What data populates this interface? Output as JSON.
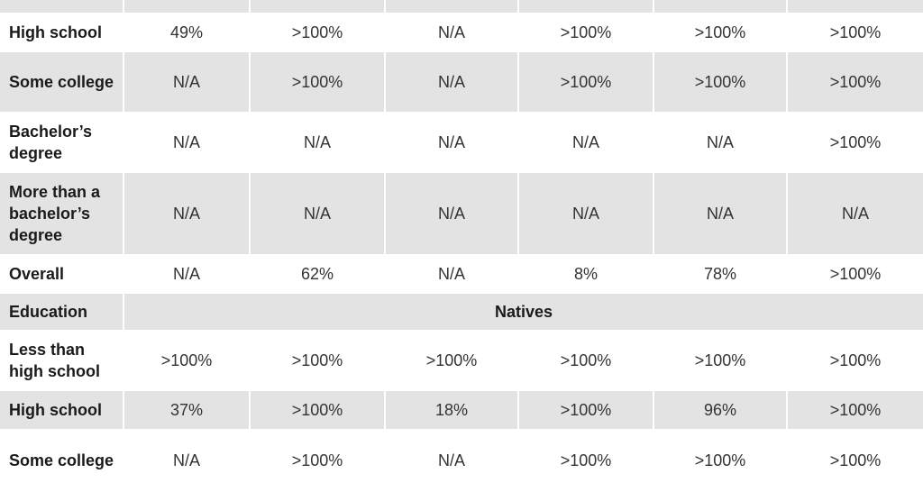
{
  "rows": [
    {
      "label": "",
      "values": [
        "",
        "",
        "",
        "",
        "",
        ""
      ],
      "shaded": true
    },
    {
      "label": "High school",
      "values": [
        "49%",
        ">100%",
        "N/A",
        ">100%",
        ">100%",
        ">100%"
      ],
      "shaded": false
    },
    {
      "label": "Some college",
      "values": [
        "N/A",
        ">100%",
        "N/A",
        ">100%",
        ">100%",
        ">100%"
      ],
      "shaded": true
    },
    {
      "label": "Bachelor’s degree",
      "values": [
        "N/A",
        "N/A",
        "N/A",
        "N/A",
        "N/A",
        ">100%"
      ],
      "shaded": false
    },
    {
      "label": "More than a bachelor’s degree",
      "values": [
        "N/A",
        "N/A",
        "N/A",
        "N/A",
        "N/A",
        "N/A"
      ],
      "shaded": true
    },
    {
      "label": "Overall",
      "values": [
        "N/A",
        "62%",
        "N/A",
        "8%",
        "78%",
        ">100%"
      ],
      "shaded": false
    }
  ],
  "section": {
    "label": "Education",
    "title": "Natives"
  },
  "rows2": [
    {
      "label": "Less than high school",
      "values": [
        ">100%",
        ">100%",
        ">100%",
        ">100%",
        ">100%",
        ">100%"
      ],
      "shaded": false
    },
    {
      "label": "High school",
      "values": [
        "37%",
        ">100%",
        "18%",
        ">100%",
        "96%",
        ">100%"
      ],
      "shaded": true
    },
    {
      "label": "Some college",
      "values": [
        "N/A",
        ">100%",
        "N/A",
        ">100%",
        ">100%",
        ">100%"
      ],
      "shaded": false
    }
  ]
}
